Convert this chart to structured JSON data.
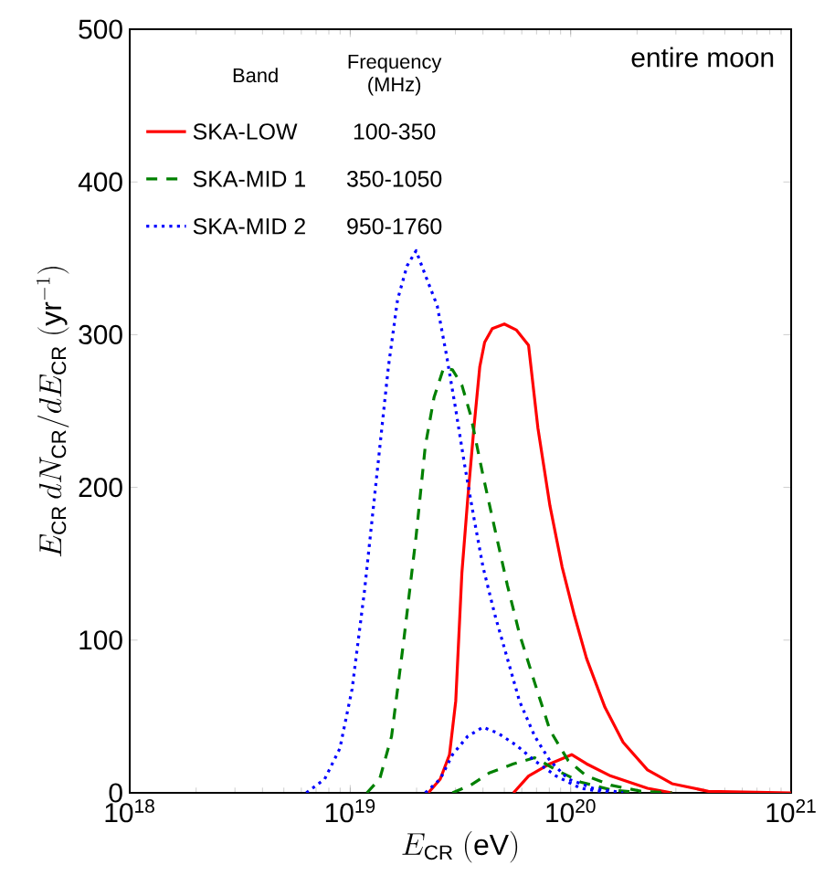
{
  "chart_data": {
    "type": "line",
    "xlabel": "E_{\\rm CR}\\ ({\\rm eV})",
    "ylabel": "E_{\\rm CR}\\, dN_{\\rm CR}/dE_{\\rm CR}\\ ({\\rm yr}^{-1})",
    "log": "x",
    "legend": "top left",
    "xlim": [
      1e+18,
      1e+21
    ],
    "ylim": [
      0,
      500
    ],
    "xticks": [
      {
        "value": 1e+18,
        "label": "10$^{18}$"
      },
      {
        "value": 1e+19,
        "label": "10$^{19}$"
      },
      {
        "value": 1e+20,
        "label": "10$^{20}$"
      },
      {
        "value": 1e+21,
        "label": "10$^{21}$"
      }
    ],
    "yticks": [
      0,
      100,
      200,
      300,
      400,
      500
    ],
    "annotations": [
      "entire moon",
      "Band",
      "Frequency (MHz)",
      "100-350",
      "350-1050",
      "950-1760"
    ],
    "series": [
      {
        "name": "SKA-LOW",
        "color": "#ff0000",
        "line_style": "solid",
        "x": [
          2.26e+19,
          2.56e+19,
          2.82e+19,
          3.01e+19,
          3.21e+19,
          3.41e+19,
          3.64e+19,
          3.87e+19,
          4.07e+19,
          4.41e+19,
          5e+19,
          5.68e+19,
          6.44e+19,
          7.1e+19,
          8.05e+19,
          9.14e+19,
          1.04e+20,
          1.18e+20,
          1.43e+20,
          1.73e+20,
          2.23e+20,
          2.88e+20,
          4.21e+20,
          1e+21
        ],
        "values": [
          0,
          9,
          25,
          60,
          144,
          192,
          239,
          279,
          295,
          304,
          307,
          303,
          293,
          239,
          188,
          148,
          116,
          88,
          56,
          33,
          15,
          6,
          1,
          0
        ]
      },
      {
        "color": "#ff0000",
        "line_style": "solid",
        "x": [
          5.5e+19,
          6.44e+19,
          8.05e+19,
          1.01e+20,
          1.18e+20,
          1.52e+20,
          2.23e+20,
          2.88e+20
        ],
        "values": [
          0,
          11,
          19,
          25,
          19,
          11,
          3,
          0
        ]
      },
      {
        "name": "SKA-MID 1",
        "color": "#008000",
        "line_style": "dashed",
        "x": [
          1.19e+19,
          1.36e+19,
          1.54e+19,
          1.75e+19,
          1.99e+19,
          2.19e+19,
          2.4e+19,
          2.65e+19,
          2.91e+19,
          3.21e+19,
          3.52e+19,
          4e+19,
          4.54e+19,
          5.16e+19,
          5.86e+19,
          6.87e+19,
          8.05e+19,
          9.75e+19,
          1.18e+20,
          1.52e+20,
          2.09e+20,
          2.88e+20
        ],
        "values": [
          0,
          9,
          37,
          100,
          168,
          227,
          259,
          278,
          277,
          267,
          247,
          208,
          172,
          136,
          104,
          72,
          41,
          21,
          11,
          5,
          1,
          0
        ]
      },
      {
        "color": "#008000",
        "line_style": "dashed",
        "x": [
          2.91e+19,
          3.52e+19,
          4.27e+19,
          5.5e+19,
          6.87e+19,
          8.59e+19,
          1.11e+20,
          1.52e+20,
          2.09e+20
        ],
        "values": [
          0,
          5,
          13,
          19,
          23,
          15,
          7,
          2,
          0
        ]
      },
      {
        "name": "SKA-MID 2",
        "color": "#0000ff",
        "line_style": "dotted",
        "x": [
          6.32e+18,
          7.66e+18,
          8.97e+18,
          1.02e+19,
          1.16e+19,
          1.32e+19,
          1.49e+19,
          1.64e+19,
          1.81e+19,
          1.99e+19,
          2.19e+19,
          2.48e+19,
          2.73e+19,
          3.01e+19,
          3.3e+19,
          3.64e+19,
          4e+19,
          4.54e+19,
          5.16e+19,
          5.86e+19,
          6.87e+19,
          8.05e+19,
          9.75e+19,
          1.26e+20,
          1.73e+20
        ],
        "values": [
          0,
          9,
          29,
          68,
          132,
          208,
          279,
          323,
          345,
          355,
          339,
          319,
          287,
          251,
          215,
          180,
          148,
          116,
          88,
          60,
          37,
          21,
          9,
          3,
          0
        ]
      },
      {
        "color": "#0000ff",
        "line_style": "dotted",
        "x": [
          2.19e+19,
          2.56e+19,
          2.91e+19,
          3.41e+19,
          4e+19,
          4.69e+19,
          5.68e+19,
          6.87e+19,
          8.59e+19,
          1.11e+20,
          1.52e+20
        ],
        "values": [
          0,
          9,
          25,
          37,
          43,
          39,
          31,
          21,
          11,
          3,
          0
        ]
      }
    ]
  }
}
